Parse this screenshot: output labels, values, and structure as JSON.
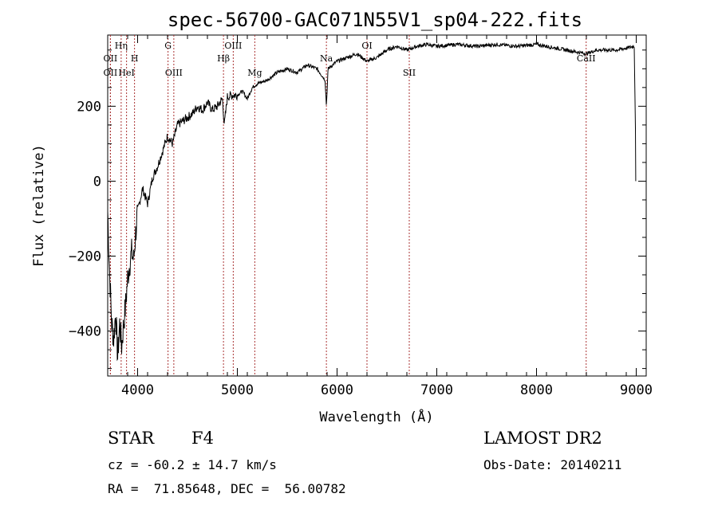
{
  "chart_data": {
    "type": "line",
    "title": "spec-56700-GAC071N55V1_sp04-222.fits",
    "xlabel": "Wavelength (Å)",
    "ylabel": "Flux (relative)",
    "xlim": [
      3700,
      9100
    ],
    "ylim": [
      -520,
      390
    ],
    "xticks": [
      4000,
      5000,
      6000,
      7000,
      8000,
      9000
    ],
    "yticks": [
      -400,
      -200,
      0,
      200
    ],
    "spectral_lines": [
      {
        "label": "OII",
        "wavelength": 3727,
        "row": 2
      },
      {
        "label": "OII",
        "wavelength": 3727,
        "row": 3
      },
      {
        "label": "Hη",
        "wavelength": 3835,
        "row": 1
      },
      {
        "label": "HeI",
        "wavelength": 3889,
        "row": 3
      },
      {
        "label": "H",
        "wavelength": 3969,
        "row": 2
      },
      {
        "label": "G",
        "wavelength": 4305,
        "row": 1
      },
      {
        "label": "OIII",
        "wavelength": 4363,
        "row": 3
      },
      {
        "label": "Hβ",
        "wavelength": 4861,
        "row": 2
      },
      {
        "label": "OIII",
        "wavelength": 4959,
        "row": 1
      },
      {
        "label": "Mg",
        "wavelength": 5175,
        "row": 3
      },
      {
        "label": "Na",
        "wavelength": 5893,
        "row": 2
      },
      {
        "label": "OI",
        "wavelength": 6300,
        "row": 1
      },
      {
        "label": "SII",
        "wavelength": 6724,
        "row": 3
      },
      {
        "label": "CaII",
        "wavelength": 8498,
        "row": 2
      }
    ],
    "spectrum": {
      "x": [
        3700,
        3720,
        3740,
        3760,
        3780,
        3800,
        3820,
        3840,
        3860,
        3880,
        3900,
        3920,
        3940,
        3960,
        3980,
        4000,
        4050,
        4100,
        4150,
        4200,
        4250,
        4300,
        4350,
        4400,
        4450,
        4500,
        4550,
        4600,
        4650,
        4700,
        4750,
        4800,
        4850,
        4870,
        4900,
        4950,
        5000,
        5050,
        5100,
        5150,
        5200,
        5300,
        5400,
        5500,
        5600,
        5700,
        5800,
        5880,
        5893,
        5910,
        6000,
        6100,
        6200,
        6300,
        6400,
        6500,
        6600,
        6700,
        6800,
        6900,
        7000,
        7200,
        7400,
        7600,
        7800,
        8000,
        8200,
        8400,
        8500,
        8600,
        8800,
        8900,
        8980,
        9000
      ],
      "y": [
        -80,
        -250,
        -380,
        -420,
        -350,
        -470,
        -380,
        -440,
        -380,
        -330,
        -260,
        -220,
        -190,
        -210,
        -140,
        -80,
        -20,
        -60,
        10,
        40,
        80,
        120,
        100,
        150,
        160,
        170,
        180,
        200,
        190,
        210,
        190,
        200,
        220,
        150,
        225,
        230,
        230,
        240,
        220,
        250,
        260,
        270,
        290,
        300,
        290,
        310,
        300,
        270,
        200,
        300,
        320,
        330,
        340,
        320,
        330,
        350,
        360,
        350,
        360,
        365,
        360,
        365,
        360,
        365,
        360,
        365,
        355,
        345,
        340,
        350,
        350,
        355,
        360,
        0
      ]
    }
  },
  "info": {
    "object_class": "STAR",
    "subclass": "F4",
    "survey": "LAMOST DR2",
    "cz": "cz = -60.2 ± 14.7 km/s",
    "obs_date": "Obs-Date: 20140211",
    "radec": "RA =  71.85648, DEC =  56.00782"
  }
}
